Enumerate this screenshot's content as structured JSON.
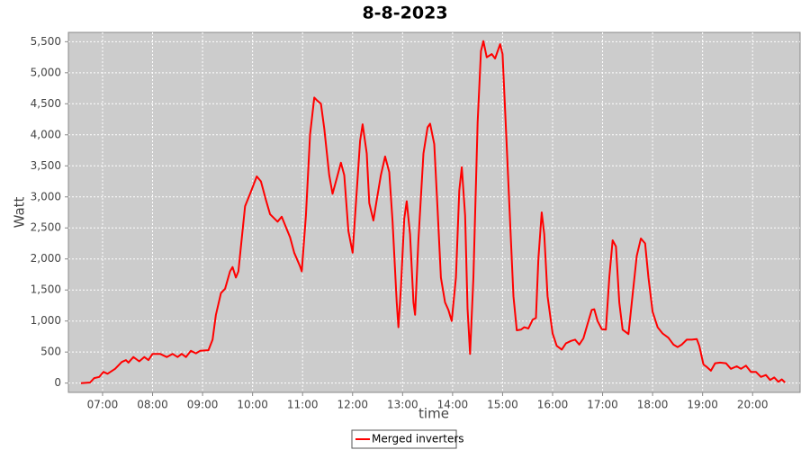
{
  "chart_data": {
    "type": "line",
    "title": "8-8-2023",
    "x_label": "time",
    "y_label": "Watt",
    "x": [
      "06:34",
      "06:45",
      "06:50",
      "06:56",
      "07:01",
      "07:06",
      "07:15",
      "07:23",
      "07:28",
      "07:31",
      "07:37",
      "07:44",
      "07:50",
      "07:55",
      "08:00",
      "08:09",
      "08:17",
      "08:24",
      "08:30",
      "08:35",
      "08:40",
      "08:46",
      "08:52",
      "08:57",
      "09:07",
      "09:12",
      "09:16",
      "09:22",
      "09:27",
      "09:33",
      "09:36",
      "09:40",
      "09:43",
      "09:46",
      "09:51",
      "09:57",
      "10:05",
      "10:10",
      "10:16",
      "10:21",
      "10:30",
      "10:35",
      "10:41",
      "10:45",
      "10:50",
      "10:57",
      "10:59",
      "11:04",
      "11:09",
      "11:14",
      "11:17",
      "11:22",
      "11:26",
      "11:32",
      "11:36",
      "11:41",
      "11:46",
      "11:50",
      "11:55",
      "12:00",
      "12:04",
      "12:09",
      "12:12",
      "12:17",
      "12:20",
      "12:25",
      "12:29",
      "12:34",
      "12:39",
      "12:44",
      "12:48",
      "12:53",
      "12:55",
      "12:58",
      "13:02",
      "13:05",
      "13:09",
      "13:13",
      "13:15",
      "13:19",
      "13:25",
      "13:30",
      "13:33",
      "13:38",
      "13:42",
      "13:46",
      "13:51",
      "13:55",
      "13:59",
      "14:04",
      "14:08",
      "14:11",
      "14:15",
      "14:18",
      "14:21",
      "14:25",
      "14:30",
      "14:34",
      "14:37",
      "14:41",
      "14:47",
      "14:51",
      "14:57",
      "15:00",
      "15:05",
      "15:10",
      "15:13",
      "15:17",
      "15:22",
      "15:26",
      "15:31",
      "15:36",
      "15:40",
      "15:43",
      "15:47",
      "15:50",
      "15:54",
      "16:00",
      "16:05",
      "16:11",
      "16:16",
      "16:22",
      "16:27",
      "16:32",
      "16:37",
      "16:43",
      "16:47",
      "16:50",
      "16:54",
      "16:59",
      "17:04",
      "17:08",
      "17:12",
      "17:16",
      "17:20",
      "17:24",
      "17:31",
      "17:35",
      "17:41",
      "17:46",
      "17:51",
      "17:55",
      "18:00",
      "18:06",
      "18:12",
      "18:19",
      "18:25",
      "18:30",
      "18:35",
      "18:41",
      "18:47",
      "18:53",
      "18:56",
      "19:01",
      "19:05",
      "19:10",
      "19:15",
      "19:21",
      "19:28",
      "19:34",
      "19:41",
      "19:46",
      "19:52",
      "19:58",
      "20:04",
      "20:10",
      "20:16",
      "20:21",
      "20:26",
      "20:31",
      "20:35",
      "20:39"
    ],
    "series": [
      {
        "name": "Merged inverters",
        "color": "#ff0000",
        "values": [
          0,
          10,
          80,
          100,
          180,
          150,
          230,
          340,
          370,
          330,
          420,
          350,
          420,
          370,
          470,
          470,
          420,
          470,
          420,
          470,
          420,
          520,
          480,
          520,
          530,
          700,
          1100,
          1450,
          1520,
          1800,
          1870,
          1700,
          1800,
          2200,
          2850,
          3050,
          3330,
          3250,
          2950,
          2720,
          2600,
          2680,
          2480,
          2350,
          2100,
          1880,
          1800,
          2700,
          4000,
          4600,
          4560,
          4500,
          4100,
          3350,
          3050,
          3300,
          3550,
          3350,
          2450,
          2100,
          2900,
          3900,
          4170,
          3700,
          2900,
          2620,
          2950,
          3350,
          3650,
          3400,
          2600,
          1300,
          900,
          1550,
          2650,
          2930,
          2400,
          1300,
          1100,
          2300,
          3700,
          4120,
          4180,
          3850,
          2800,
          1700,
          1300,
          1180,
          1000,
          1700,
          3100,
          3480,
          2700,
          1200,
          470,
          1700,
          4200,
          5350,
          5510,
          5250,
          5300,
          5230,
          5460,
          5300,
          3800,
          2300,
          1400,
          850,
          860,
          900,
          880,
          1020,
          1050,
          2000,
          2750,
          2400,
          1400,
          800,
          600,
          540,
          640,
          680,
          700,
          620,
          720,
          1000,
          1180,
          1190,
          1000,
          870,
          860,
          1700,
          2300,
          2200,
          1300,
          860,
          790,
          1300,
          2050,
          2330,
          2250,
          1700,
          1150,
          900,
          800,
          730,
          620,
          580,
          620,
          700,
          700,
          710,
          600,
          300,
          260,
          200,
          320,
          330,
          320,
          230,
          270,
          230,
          280,
          180,
          180,
          100,
          130,
          50,
          90,
          20,
          60,
          10
        ]
      }
    ],
    "xlim": [
      "06:19",
      "20:57"
    ],
    "xticks": [
      "07:00",
      "08:00",
      "09:00",
      "10:00",
      "11:00",
      "12:00",
      "13:00",
      "14:00",
      "15:00",
      "16:00",
      "17:00",
      "18:00",
      "19:00",
      "20:00"
    ],
    "ylim": [
      -150,
      5650
    ],
    "yticks": [
      0,
      500,
      {
        "value": 1000,
        "label": "1,000"
      },
      {
        "value": 1500,
        "label": "1,500"
      },
      {
        "value": 2000,
        "label": "2,000"
      },
      {
        "value": 2500,
        "label": "2,500"
      },
      {
        "value": 3000,
        "label": "3,000"
      },
      {
        "value": 3500,
        "label": "3,500"
      },
      {
        "value": 4000,
        "label": "4,000"
      },
      {
        "value": 4500,
        "label": "4,500"
      },
      {
        "value": 5000,
        "label": "5,000"
      },
      {
        "value": 5500,
        "label": "5,500"
      }
    ],
    "grid": true,
    "legend": "bottom"
  }
}
